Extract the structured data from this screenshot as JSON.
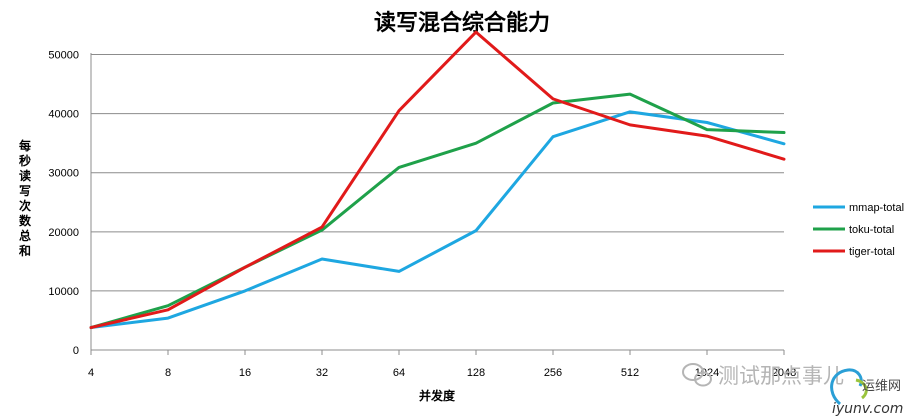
{
  "chart_data": {
    "type": "line",
    "title": "读写混合综合能力",
    "xlabel": "并发度",
    "ylabel": "每秒读写次数总和",
    "categories": [
      "4",
      "8",
      "16",
      "32",
      "64",
      "128",
      "256",
      "512",
      "1024",
      "2048"
    ],
    "ylim": [
      0,
      55000
    ],
    "yticks": [
      0,
      10000,
      20000,
      30000,
      40000,
      50000
    ],
    "grid": true,
    "legend_position": "right",
    "series": [
      {
        "name": "mmap-total",
        "color": "#1ea7e1",
        "values": [
          3800,
          5400,
          10000,
          15400,
          13300,
          20200,
          36100,
          40300,
          38500,
          34900
        ]
      },
      {
        "name": "toku-total",
        "color": "#1fa14a",
        "values": [
          3800,
          7500,
          14000,
          20300,
          30900,
          35000,
          41800,
          43300,
          37300,
          36800
        ]
      },
      {
        "name": "tiger-total",
        "color": "#e11a1a",
        "values": [
          3800,
          6800,
          14000,
          20800,
          40500,
          53800,
          42500,
          38100,
          36200,
          32300
        ]
      }
    ]
  },
  "watermark": {
    "text1": "测试那点事儿",
    "text2": "运维网",
    "text3": "iyunv.com"
  }
}
